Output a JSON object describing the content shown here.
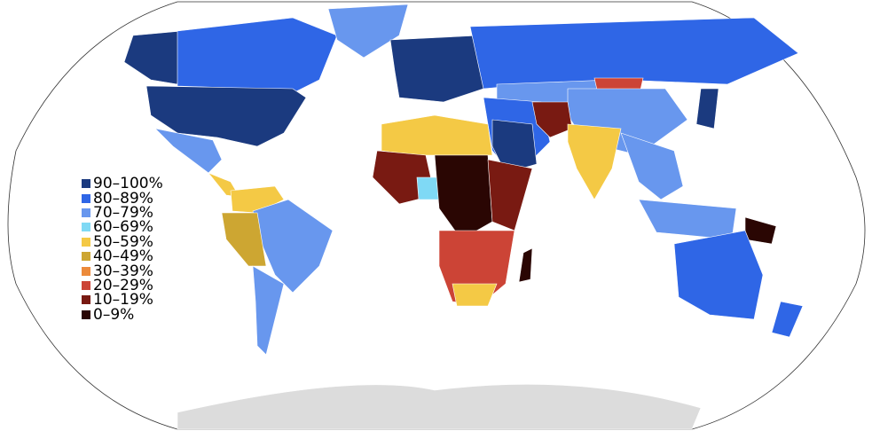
{
  "legend": [
    {
      "label": "90–100%",
      "color": "#1b3a7f"
    },
    {
      "label": "80–89%",
      "color": "#2f66e6"
    },
    {
      "label": "70–79%",
      "color": "#6897ee"
    },
    {
      "label": "60–69%",
      "color": "#7fd9f5"
    },
    {
      "label": "50–59%",
      "color": "#f4c945"
    },
    {
      "label": "40–49%",
      "color": "#cda632"
    },
    {
      "label": "30–39%",
      "color": "#ec8a3a"
    },
    {
      "label": "20–29%",
      "color": "#cc4436"
    },
    {
      "label": "10–19%",
      "color": "#791a12"
    },
    {
      "label": "0–9%",
      "color": "#2a0603"
    }
  ],
  "no_data_color": "#dcdcdc"
}
